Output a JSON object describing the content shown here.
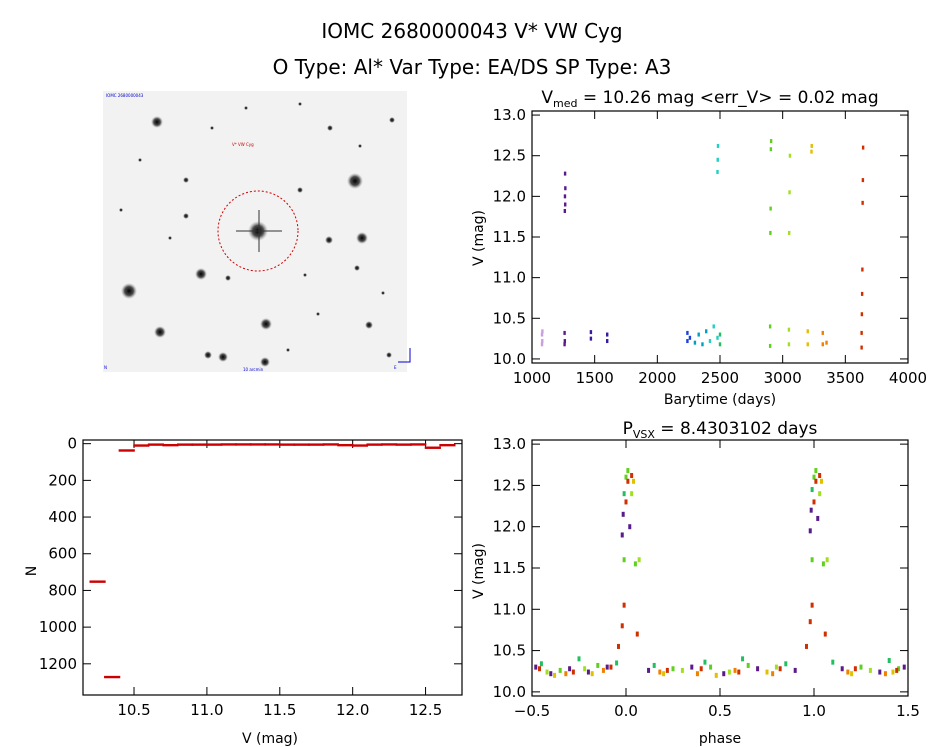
{
  "header": {
    "title_line1": "IOMC 2680000043    V* VW Cyg",
    "title_line2": "O Type: Al*   Var Type: EA/DS   SP Type: A3"
  },
  "finder": {
    "label_top_left": "IOMC 2680000043",
    "label_target": "V* VW Cyg",
    "label_bottom_left": "N",
    "label_bottom_center": "10 arcmin",
    "label_bottom_right": "E"
  },
  "chart_data": [
    {
      "id": "light-curve",
      "type": "scatter",
      "title": "V",
      "title_sub": "med",
      "title_rest": " = 10.26 mag <err_V> = 0.02 mag",
      "xlabel": "Barytime (days)",
      "ylabel": "V (mag)",
      "xlim": [
        1000,
        4000
      ],
      "ylim": [
        13.05,
        9.95
      ],
      "xticks": [
        1000,
        1500,
        2000,
        2500,
        3000,
        3500,
        4000
      ],
      "yticks": [
        10.0,
        10.5,
        11.0,
        11.5,
        12.0,
        12.5,
        13.0
      ],
      "ytick_labels": [
        "10.0",
        "10.5",
        "11.0",
        "11.5",
        "12.0",
        "12.5",
        "13.0"
      ],
      "series": [
        {
          "color": "#c8a0e0",
          "points": [
            [
              1080,
              10.18
            ],
            [
              1080,
              10.3
            ],
            [
              1082,
              10.22
            ],
            [
              1083,
              10.34
            ]
          ]
        },
        {
          "color": "#5a1a8a",
          "points": [
            [
              1260,
              10.18
            ],
            [
              1260,
              10.32
            ],
            [
              1262,
              10.22
            ],
            [
              1262,
              11.82
            ],
            [
              1263,
              12.0
            ],
            [
              1264,
              12.28
            ],
            [
              1265,
              11.9
            ],
            [
              1266,
              12.1
            ]
          ]
        },
        {
          "color": "#3a1aa0",
          "points": [
            [
              1470,
              10.25
            ],
            [
              1470,
              10.33
            ],
            [
              1600,
              10.22
            ],
            [
              1600,
              10.3
            ]
          ]
        },
        {
          "color": "#1a40e0",
          "points": [
            [
              2240,
              10.22
            ],
            [
              2240,
              10.32
            ],
            [
              2260,
              10.26
            ]
          ]
        },
        {
          "color": "#00a0c0",
          "points": [
            [
              2300,
              10.2
            ],
            [
              2330,
              10.3
            ],
            [
              2360,
              10.18
            ],
            [
              2390,
              10.34
            ]
          ]
        },
        {
          "color": "#20d0c0",
          "points": [
            [
              2420,
              10.22
            ],
            [
              2450,
              10.4
            ],
            [
              2480,
              10.26
            ],
            [
              2480,
              12.3
            ],
            [
              2482,
              12.45
            ],
            [
              2484,
              12.62
            ]
          ]
        },
        {
          "color": "#20c060",
          "points": [
            [
              2500,
              10.18
            ],
            [
              2500,
              10.3
            ]
          ]
        },
        {
          "color": "#60d020",
          "points": [
            [
              2900,
              10.16
            ],
            [
              2900,
              10.4
            ],
            [
              2902,
              11.55
            ],
            [
              2904,
              11.85
            ],
            [
              2906,
              12.58
            ],
            [
              2908,
              12.68
            ]
          ]
        },
        {
          "color": "#a0e020",
          "points": [
            [
              3050,
              10.18
            ],
            [
              3050,
              10.36
            ],
            [
              3052,
              11.55
            ],
            [
              3055,
              12.05
            ],
            [
              3058,
              12.5
            ]
          ]
        },
        {
          "color": "#e0c000",
          "points": [
            [
              3200,
              10.18
            ],
            [
              3200,
              10.34
            ],
            [
              3230,
              12.55
            ],
            [
              3232,
              12.62
            ]
          ]
        },
        {
          "color": "#f08000",
          "points": [
            [
              3320,
              10.18
            ],
            [
              3320,
              10.32
            ],
            [
              3350,
              10.2
            ]
          ]
        },
        {
          "color": "#d03000",
          "points": [
            [
              3630,
              10.14
            ],
            [
              3630,
              10.32
            ],
            [
              3632,
              10.55
            ],
            [
              3634,
              10.8
            ],
            [
              3636,
              11.1
            ],
            [
              3638,
              11.92
            ],
            [
              3640,
              12.2
            ],
            [
              3642,
              12.6
            ]
          ]
        }
      ]
    },
    {
      "id": "histogram",
      "type": "bar",
      "xlabel": "V (mag)",
      "ylabel": "N",
      "xlim": [
        10.15,
        12.75
      ],
      "ylim": [
        -20,
        1370
      ],
      "xticks": [
        10.5,
        11.0,
        11.5,
        12.0,
        12.5
      ],
      "xtick_labels": [
        "10.5",
        "11.0",
        "11.5",
        "12.0",
        "12.5"
      ],
      "yticks": [
        0,
        200,
        400,
        600,
        800,
        1000,
        1200
      ],
      "bin_width": 0.1,
      "bin_starts": [
        10.2,
        10.3,
        10.4,
        10.5,
        10.6,
        10.7,
        10.8,
        10.9,
        11.0,
        11.1,
        11.2,
        11.3,
        11.4,
        11.5,
        11.6,
        11.7,
        11.8,
        11.9,
        12.0,
        12.1,
        12.2,
        12.3,
        12.4,
        12.5,
        12.6
      ],
      "values": [
        750,
        1270,
        35,
        8,
        3,
        6,
        3,
        3,
        3,
        2,
        2,
        2,
        2,
        3,
        3,
        3,
        2,
        6,
        8,
        3,
        2,
        3,
        2,
        20,
        6
      ],
      "color": "#cc0000"
    },
    {
      "id": "phase-curve",
      "type": "scatter",
      "title": "P",
      "title_sub": "VSX",
      "title_rest": " = 8.4303102 days",
      "xlabel": "phase",
      "ylabel": "V (mag)",
      "xlim": [
        -0.5,
        1.5
      ],
      "ylim": [
        13.05,
        9.95
      ],
      "xticks": [
        -0.5,
        0.0,
        0.5,
        1.0,
        1.5
      ],
      "xtick_labels": [
        "−0.5",
        "0.0",
        "0.5",
        "1.0",
        "1.5"
      ],
      "yticks": [
        10.0,
        10.5,
        11.0,
        11.5,
        12.0,
        12.5,
        13.0
      ],
      "ytick_labels": [
        "10.0",
        "10.5",
        "11.0",
        "11.5",
        "12.0",
        "12.5",
        "13.0"
      ],
      "series": [
        {
          "color": "#5a1a8a",
          "points": [
            [
              -0.48,
              10.3
            ],
            [
              -0.4,
              10.22
            ],
            [
              -0.3,
              10.28
            ],
            [
              -0.2,
              10.24
            ],
            [
              -0.1,
              10.3
            ],
            [
              -0.02,
              11.9
            ],
            [
              -0.015,
              12.15
            ],
            [
              0.02,
              12.0
            ],
            [
              0.12,
              10.26
            ],
            [
              0.35,
              10.3
            ],
            [
              0.52,
              10.22
            ],
            [
              0.7,
              10.28
            ],
            [
              0.9,
              10.26
            ],
            [
              0.98,
              11.95
            ],
            [
              0.985,
              12.2
            ],
            [
              1.02,
              12.1
            ],
            [
              1.15,
              10.28
            ],
            [
              1.35,
              10.24
            ],
            [
              1.48,
              10.3
            ]
          ]
        },
        {
          "color": "#20c060",
          "points": [
            [
              -0.45,
              10.34
            ],
            [
              -0.25,
              10.4
            ],
            [
              -0.05,
              10.35
            ],
            [
              -0.01,
              12.4
            ],
            [
              0.15,
              10.32
            ],
            [
              0.42,
              10.36
            ],
            [
              0.62,
              10.4
            ],
            [
              0.85,
              10.34
            ],
            [
              0.99,
              12.45
            ],
            [
              1.1,
              10.36
            ],
            [
              1.4,
              10.38
            ]
          ]
        },
        {
          "color": "#60d020",
          "points": [
            [
              -0.35,
              10.26
            ],
            [
              -0.15,
              10.32
            ],
            [
              -0.01,
              11.6
            ],
            [
              0.0,
              12.6
            ],
            [
              0.01,
              12.68
            ],
            [
              0.05,
              11.55
            ],
            [
              0.25,
              10.28
            ],
            [
              0.45,
              10.3
            ],
            [
              0.65,
              10.32
            ],
            [
              0.99,
              11.6
            ],
            [
              1.0,
              12.6
            ],
            [
              1.01,
              12.68
            ],
            [
              1.05,
              11.55
            ],
            [
              1.25,
              10.3
            ],
            [
              1.45,
              10.28
            ]
          ]
        },
        {
          "color": "#a0e020",
          "points": [
            [
              -0.42,
              10.24
            ],
            [
              -0.22,
              10.28
            ],
            [
              0.03,
              12.4
            ],
            [
              0.07,
              11.6
            ],
            [
              0.3,
              10.26
            ],
            [
              0.55,
              10.24
            ],
            [
              0.8,
              10.3
            ],
            [
              1.03,
              12.4
            ],
            [
              1.07,
              11.6
            ],
            [
              1.3,
              10.26
            ]
          ]
        },
        {
          "color": "#e0c000",
          "points": [
            [
              -0.38,
              10.2
            ],
            [
              -0.18,
              10.22
            ],
            [
              0.04,
              12.55
            ],
            [
              0.2,
              10.22
            ],
            [
              0.48,
              10.2
            ],
            [
              0.75,
              10.24
            ],
            [
              1.04,
              12.55
            ],
            [
              1.2,
              10.22
            ],
            [
              1.42,
              10.24
            ]
          ]
        },
        {
          "color": "#f08000",
          "points": [
            [
              -0.32,
              10.22
            ],
            [
              -0.12,
              10.26
            ],
            [
              0.18,
              10.24
            ],
            [
              0.38,
              10.22
            ],
            [
              0.58,
              10.26
            ],
            [
              0.78,
              10.22
            ],
            [
              1.18,
              10.24
            ],
            [
              1.38,
              10.22
            ]
          ]
        },
        {
          "color": "#d03000",
          "points": [
            [
              -0.46,
              10.28
            ],
            [
              -0.28,
              10.24
            ],
            [
              -0.08,
              10.3
            ],
            [
              -0.04,
              10.55
            ],
            [
              -0.02,
              10.8
            ],
            [
              -0.01,
              11.05
            ],
            [
              0.0,
              12.3
            ],
            [
              0.01,
              12.55
            ],
            [
              0.03,
              12.62
            ],
            [
              0.06,
              10.7
            ],
            [
              0.22,
              10.26
            ],
            [
              0.4,
              10.28
            ],
            [
              0.6,
              10.24
            ],
            [
              0.82,
              10.28
            ],
            [
              0.96,
              10.55
            ],
            [
              0.98,
              10.85
            ],
            [
              0.99,
              11.05
            ],
            [
              1.0,
              12.3
            ],
            [
              1.01,
              12.55
            ],
            [
              1.03,
              12.62
            ],
            [
              1.06,
              10.7
            ],
            [
              1.22,
              10.28
            ],
            [
              1.44,
              10.26
            ]
          ]
        }
      ]
    }
  ]
}
